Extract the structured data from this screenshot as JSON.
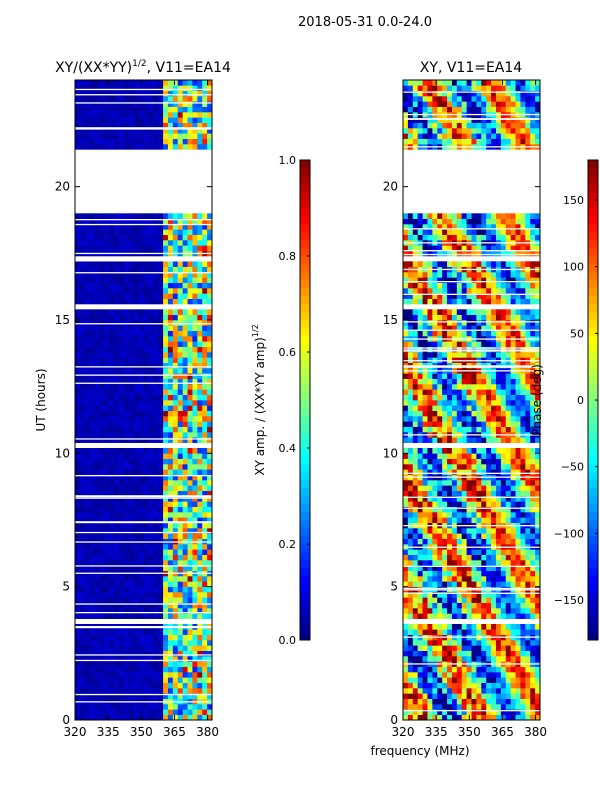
{
  "suptitle": "2018-05-31 0.0-24.0",
  "colors": {
    "jet": [
      "#00007f",
      "#0000ff",
      "#007fff",
      "#00ffff",
      "#7fff7f",
      "#ffff00",
      "#ff7f00",
      "#ff0000",
      "#7f0000"
    ],
    "background": "#ffffff",
    "axis": "#000000"
  },
  "chart_data": [
    {
      "type": "heatmap",
      "title": "XY/(XX*YY)^1/2, V11=EA14",
      "title_main": "XY/(XX*YY)",
      "title_sup": "1/2",
      "title_tail": ", V11=EA14",
      "xlabel": "",
      "ylabel": "UT (hours)",
      "x_ticks": [
        320,
        335,
        350,
        365,
        380
      ],
      "y_ticks": [
        0,
        5,
        10,
        15,
        20
      ],
      "xlim": [
        320,
        382
      ],
      "ylim": [
        0,
        24
      ],
      "data_gaps_hours": [
        [
          3.55,
          3.7
        ],
        [
          10.2,
          10.35
        ],
        [
          15.3,
          15.6
        ],
        [
          17.2,
          17.35
        ],
        [
          19.0,
          21.4
        ]
      ],
      "colorbar": {
        "label": "XY amp. / (XX*YY amp)^1/2",
        "label_main": "XY amp. / (XX*YY amp)",
        "label_sup": "1/2",
        "range": [
          0.0,
          1.0
        ],
        "ticks": [
          "0.0",
          "0.2",
          "0.4",
          "0.6",
          "0.8",
          "1.0"
        ]
      }
    },
    {
      "type": "heatmap",
      "title": "XY, V11=EA14",
      "xlabel": "frequency (MHz)",
      "ylabel": "",
      "x_ticks": [
        320,
        335,
        350,
        365,
        380
      ],
      "y_ticks": [
        0,
        5,
        10,
        15,
        20
      ],
      "xlim": [
        320,
        382
      ],
      "ylim": [
        0,
        24
      ],
      "data_gaps_hours": [
        [
          3.55,
          3.7
        ],
        [
          10.2,
          10.35
        ],
        [
          15.3,
          15.6
        ],
        [
          17.2,
          17.35
        ],
        [
          19.0,
          21.4
        ]
      ],
      "colorbar": {
        "label": "Phase (deg)",
        "range": [
          -180,
          180
        ],
        "ticks": [
          "−150",
          "−100",
          "−50",
          "0",
          "50",
          "100",
          "150"
        ]
      }
    }
  ]
}
